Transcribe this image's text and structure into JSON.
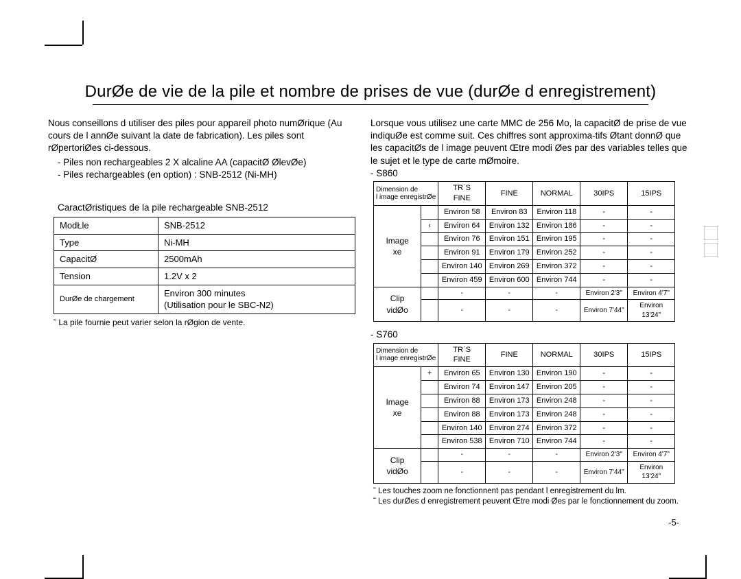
{
  "title": "DurØe de vie de la pile et nombre de prises de vue (durØe d enregistrement)",
  "left": {
    "intro": "Nous conseillons d utiliser des piles pour appareil photo numØrique (Au cours de l annØe suivant la date de fabrication). Les piles sont rØpertoriØes ci-dessous.",
    "bullets": [
      "Piles non rechargeables 2 X alcaline AA (capacitØ ØlevØe)",
      "Piles rechargeables (en option) : SNB-2512 (Ni-MH)"
    ],
    "subhead": "CaractØristiques de la pile rechargeable SNB-2512",
    "spec": [
      [
        "ModŁle",
        "SNB-2512"
      ],
      [
        "Type",
        "Ni-MH"
      ],
      [
        "CapacitØ",
        "2500mAh"
      ],
      [
        "Tension",
        "1.2V x 2"
      ],
      [
        "DurØe de chargement",
        "Environ 300 minutes\n(Utilisation pour le SBC-N2)"
      ]
    ],
    "note": "˜  La pile fournie peut varier selon la rØgion de vente."
  },
  "right": {
    "intro": "Lorsque vous utilisez une carte MMC de 256 Mo,  la capacitØ de prise de vue indiquØe est comme suit. Ces chiffres sont approxima-tifs Øtant donnØ que les capacitØs de l image peuvent Œtre modi Øes par des variables telles que le sujet et le type de carte mØmoire.",
    "s860_label": "- S860",
    "s760_label": "- S760",
    "headers": {
      "dim": "Dimension de\nl image enregistrØe",
      "c1": "TR˙S\nFINE",
      "c2": "FINE",
      "c3": "NORMAL",
      "c4": "30IPS",
      "c5": "15IPS"
    },
    "s860": {
      "img_label": "Image\nxe",
      "clip_label": "Clip\nvidØo",
      "rows": [
        [
          "",
          "Environ 58",
          "Environ 83",
          "Environ 118",
          "-",
          "-"
        ],
        [
          "‹",
          "Environ 64",
          "Environ 132",
          "Environ 186",
          "-",
          "-"
        ],
        [
          "",
          "Environ 76",
          "Environ 151",
          "Environ 195",
          "-",
          "-"
        ],
        [
          "",
          "Environ 91",
          "Environ 179",
          "Environ 252",
          "-",
          "-"
        ],
        [
          "",
          "Environ 140",
          "Environ 269",
          "Environ 372",
          "-",
          "-"
        ],
        [
          "",
          "Environ 459",
          "Environ 600",
          "Environ 744",
          "-",
          "-"
        ]
      ],
      "clip": [
        [
          "-",
          "-",
          "-",
          "Environ 2'3\"",
          "Environ 4'7\""
        ],
        [
          "-",
          "-",
          "-",
          "Environ 7'44\"",
          "Environ 13'24\""
        ]
      ]
    },
    "s760": {
      "img_label": "Image\nxe",
      "clip_label": "Clip\nvidØo",
      "rows": [
        [
          "+",
          "Environ 65",
          "Environ 130",
          "Environ 190",
          "-",
          "-"
        ],
        [
          "",
          "Environ 74",
          "Environ 147",
          "Environ 205",
          "-",
          "-"
        ],
        [
          "",
          "Environ 88",
          "Environ 173",
          "Environ 248",
          "-",
          "-"
        ],
        [
          "",
          "Environ 88",
          "Environ 173",
          "Environ 248",
          "-",
          "-"
        ],
        [
          "",
          "Environ 140",
          "Environ 274",
          "Environ 372",
          "-",
          "-"
        ],
        [
          "",
          "Environ 538",
          "Environ 710",
          "Environ 744",
          "-",
          "-"
        ]
      ],
      "clip": [
        [
          "-",
          "-",
          "-",
          "Environ 2'3\"",
          "Environ 4'7\""
        ],
        [
          "-",
          "-",
          "-",
          "Environ 7'44\"",
          "Environ 13'24\""
        ]
      ]
    },
    "footnotes": [
      "Les touches zoom ne fonctionnent pas pendant l enregistrement du  lm.",
      "Les durØes d enregistrement peuvent Œtre modi Øes par le fonctionnement du zoom."
    ]
  },
  "pagenum": "-5-"
}
